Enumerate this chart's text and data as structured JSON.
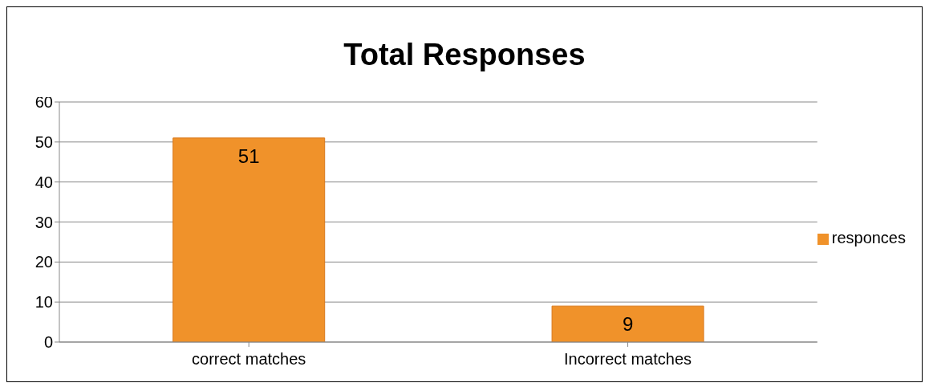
{
  "chart_data": {
    "type": "bar",
    "title": "Total Responses",
    "categories": [
      "correct matches",
      "Incorrect matches"
    ],
    "series": [
      {
        "name": "responces",
        "color": "#f0922a",
        "values": [
          51,
          9
        ]
      }
    ],
    "ylim": [
      0,
      60
    ],
    "yticks": [
      0,
      10,
      20,
      30,
      40,
      50,
      60
    ],
    "grid": "y",
    "legend": "right",
    "data_labels": true
  }
}
